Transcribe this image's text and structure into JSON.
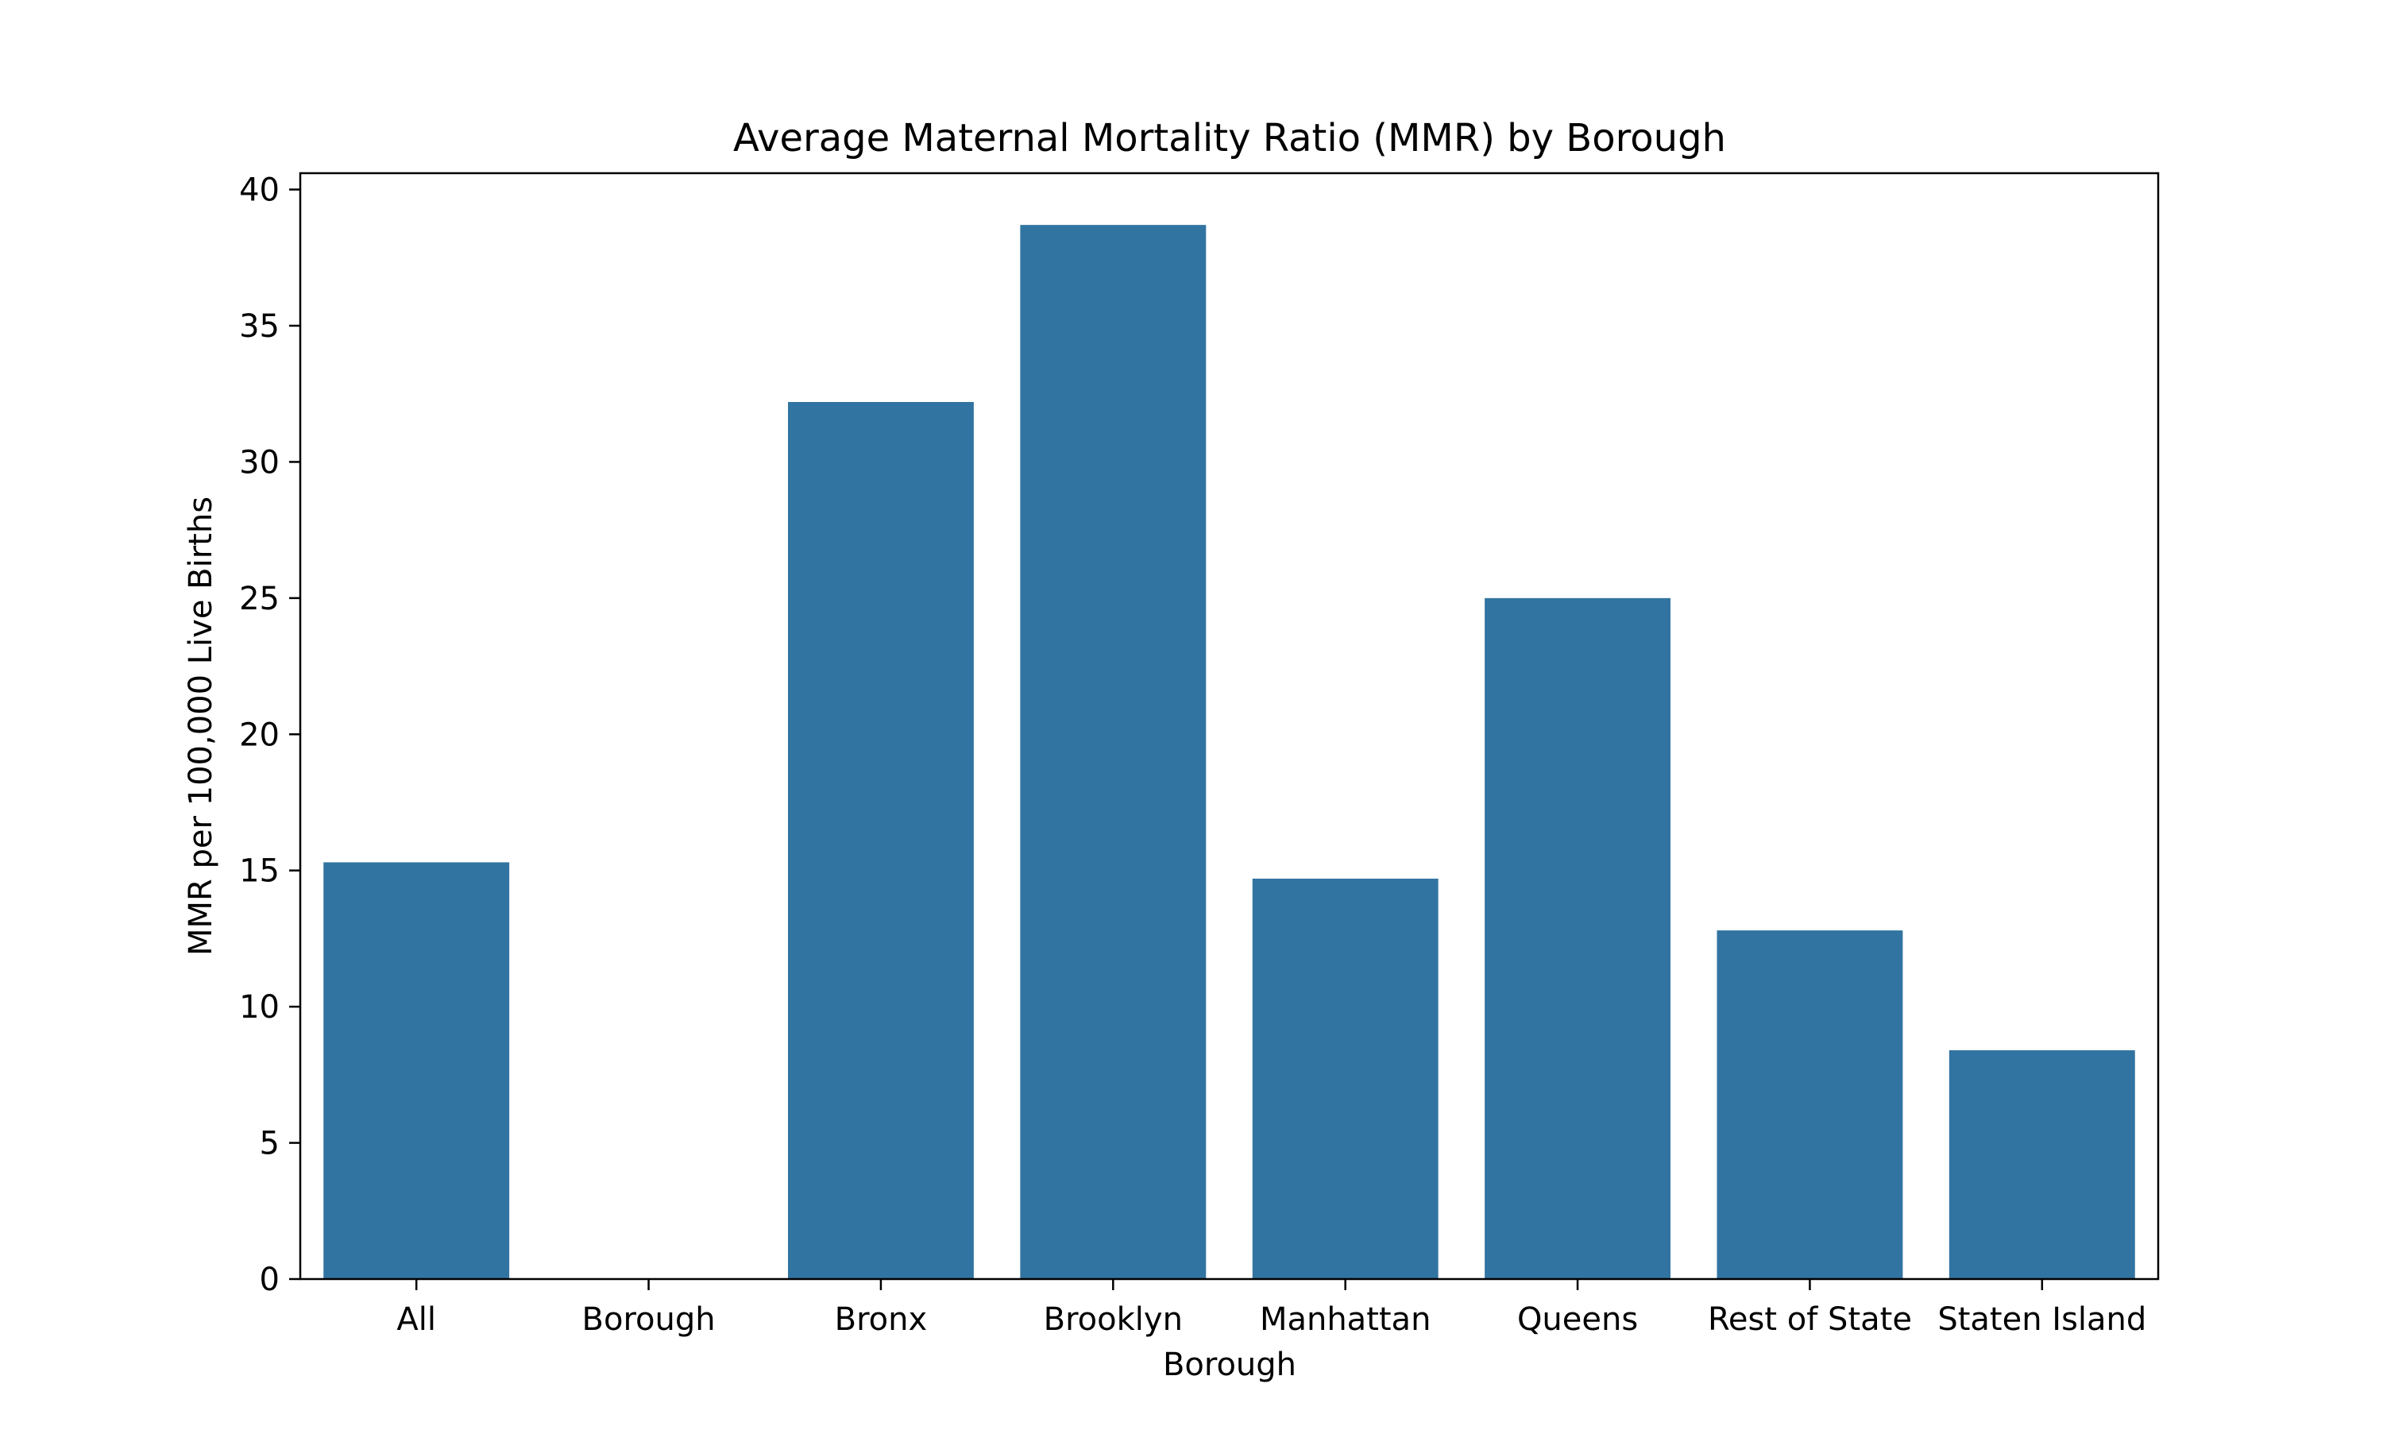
{
  "chart_data": {
    "type": "bar",
    "title": "Average Maternal Mortality Ratio (MMR) by Borough",
    "xlabel": "Borough",
    "ylabel": "MMR per 100,000 Live Births",
    "categories": [
      "All",
      "Borough",
      "Bronx",
      "Brooklyn",
      "Manhattan",
      "Queens",
      "Rest of State",
      "Staten Island"
    ],
    "values": [
      15.3,
      0,
      32.2,
      38.7,
      14.7,
      25.0,
      12.8,
      8.4
    ],
    "ylim": [
      0,
      40.6
    ],
    "yticks": [
      0,
      5,
      10,
      15,
      20,
      25,
      30,
      35,
      40
    ],
    "bar_color": "#3274a1",
    "grid": false,
    "legend": false
  }
}
